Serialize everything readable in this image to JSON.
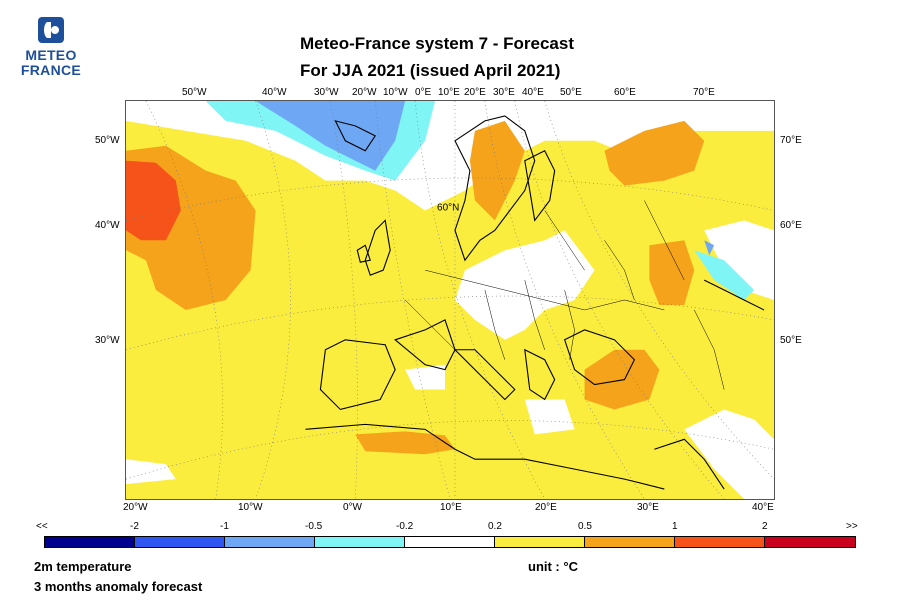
{
  "logo": {
    "line1": "METEO",
    "line2": "FRANCE",
    "color": "#1e4f9a"
  },
  "title": {
    "line1": "Meteo-France system 7  -  Forecast",
    "line2": "For JJA 2021      (issued April 2021)"
  },
  "lon_top": [
    "50°W",
    "40°W",
    "30°W",
    "20°W",
    "10°W",
    "0°E",
    "10°E",
    "20°E",
    "30°E",
    "40°E",
    "50°E",
    "60°E",
    "70°E"
  ],
  "lon_bottom": [
    "20°W",
    "10°W",
    "0°W",
    "10°E",
    "20°E",
    "30°E",
    "40°E"
  ],
  "lat_left": [
    "50°W",
    "40°W",
    "30°W"
  ],
  "lat_right": [
    "70°E",
    "60°E",
    "50°E"
  ],
  "lat_label_map": "60°N",
  "legend": {
    "labels": [
      "<<",
      "-2",
      "-1",
      "-0.5",
      "-0.2",
      "0.2",
      "0.5",
      "1",
      "2",
      ">>"
    ],
    "colors": [
      "#00008f",
      "#2f56f0",
      "#6ea8f5",
      "#7ff5f5",
      "#ffffff",
      "#fbed3e",
      "#f5a31a",
      "#f5531a",
      "#c8001e"
    ]
  },
  "footer": {
    "variable": "2m temperature",
    "description": "3 months anomaly forecast",
    "unit": "unit : °C"
  },
  "map_colors": {
    "yellow": "#fbed3e",
    "orange": "#f5a31a",
    "red": "#f5531a",
    "cyan": "#7ff5f5",
    "blue": "#6ea8f5",
    "white": "#ffffff",
    "coast": "#000000"
  }
}
